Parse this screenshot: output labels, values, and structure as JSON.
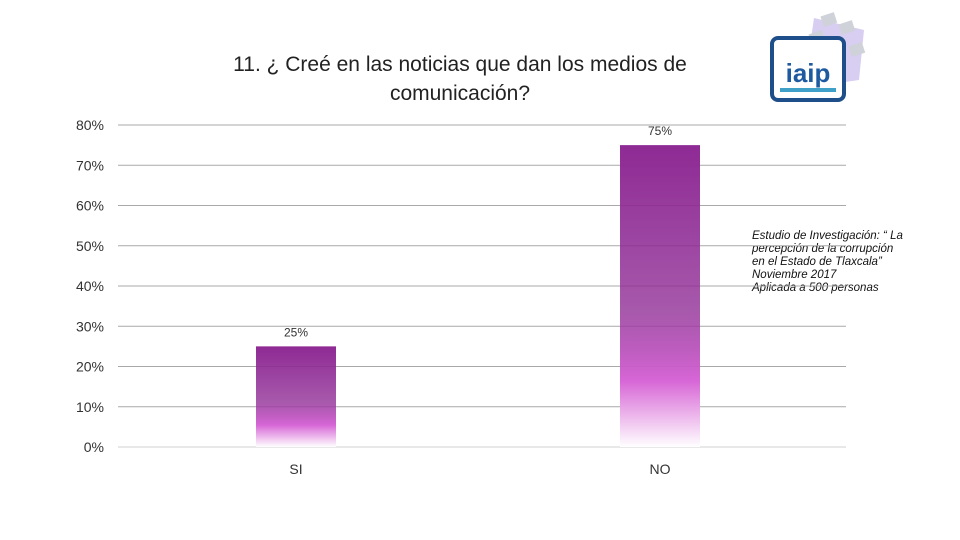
{
  "chart_data": {
    "type": "bar",
    "title": "11. ¿ Creé en las noticias que dan los medios de comunicación?",
    "categories": [
      "SI",
      "NO"
    ],
    "values": [
      25,
      75
    ],
    "data_labels": [
      "25%",
      "75%"
    ],
    "y_ticks": [
      "0%",
      "10%",
      "20%",
      "30%",
      "40%",
      "50%",
      "60%",
      "70%",
      "80%"
    ],
    "ylim": [
      0,
      80
    ],
    "grid": true,
    "bar_color": "#8e2a94",
    "bar_color_light": "#d766d6"
  },
  "note": {
    "line1": "Estudio de Investigación: “ La",
    "line2": "percepción de la corrupción",
    "line3": "en el Estado de Tlaxcala”",
    "line4": "Noviembre 2017",
    "line5": "Aplicada a 500 personas"
  },
  "logo": {
    "icon": "iaip-logo-icon",
    "text": "iaip"
  }
}
